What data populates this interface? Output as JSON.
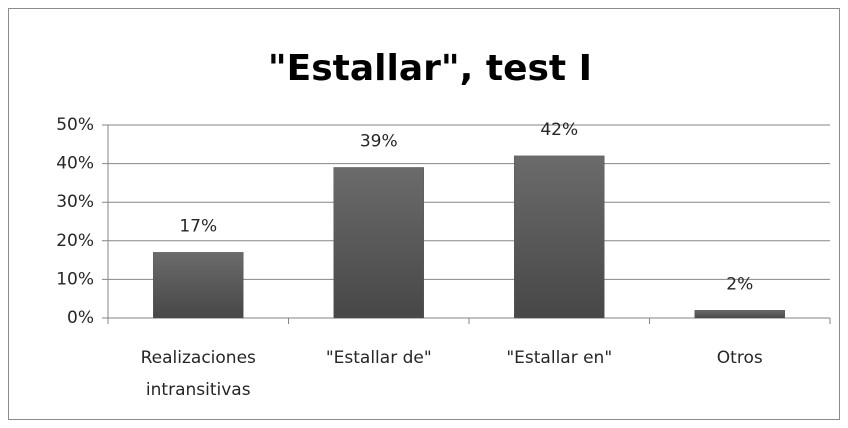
{
  "chart_data": {
    "type": "bar",
    "title": "\"Estallar\", test I",
    "categories": [
      "Realizaciones intransitivas",
      "\"Estallar de\"",
      "\"Estallar en\"",
      "Otros"
    ],
    "values": [
      17,
      39,
      42,
      2
    ],
    "value_labels": [
      "17%",
      "39%",
      "42%",
      "2%"
    ],
    "color": "#595959",
    "ylim": [
      0,
      50
    ],
    "yticks": [
      {
        "value": 0,
        "label": "0%"
      },
      {
        "value": 10,
        "label": "10%"
      },
      {
        "value": 20,
        "label": "20%"
      },
      {
        "value": 30,
        "label": "30%"
      },
      {
        "value": 40,
        "label": "40%"
      },
      {
        "value": 50,
        "label": "50%"
      }
    ],
    "grid": true
  }
}
